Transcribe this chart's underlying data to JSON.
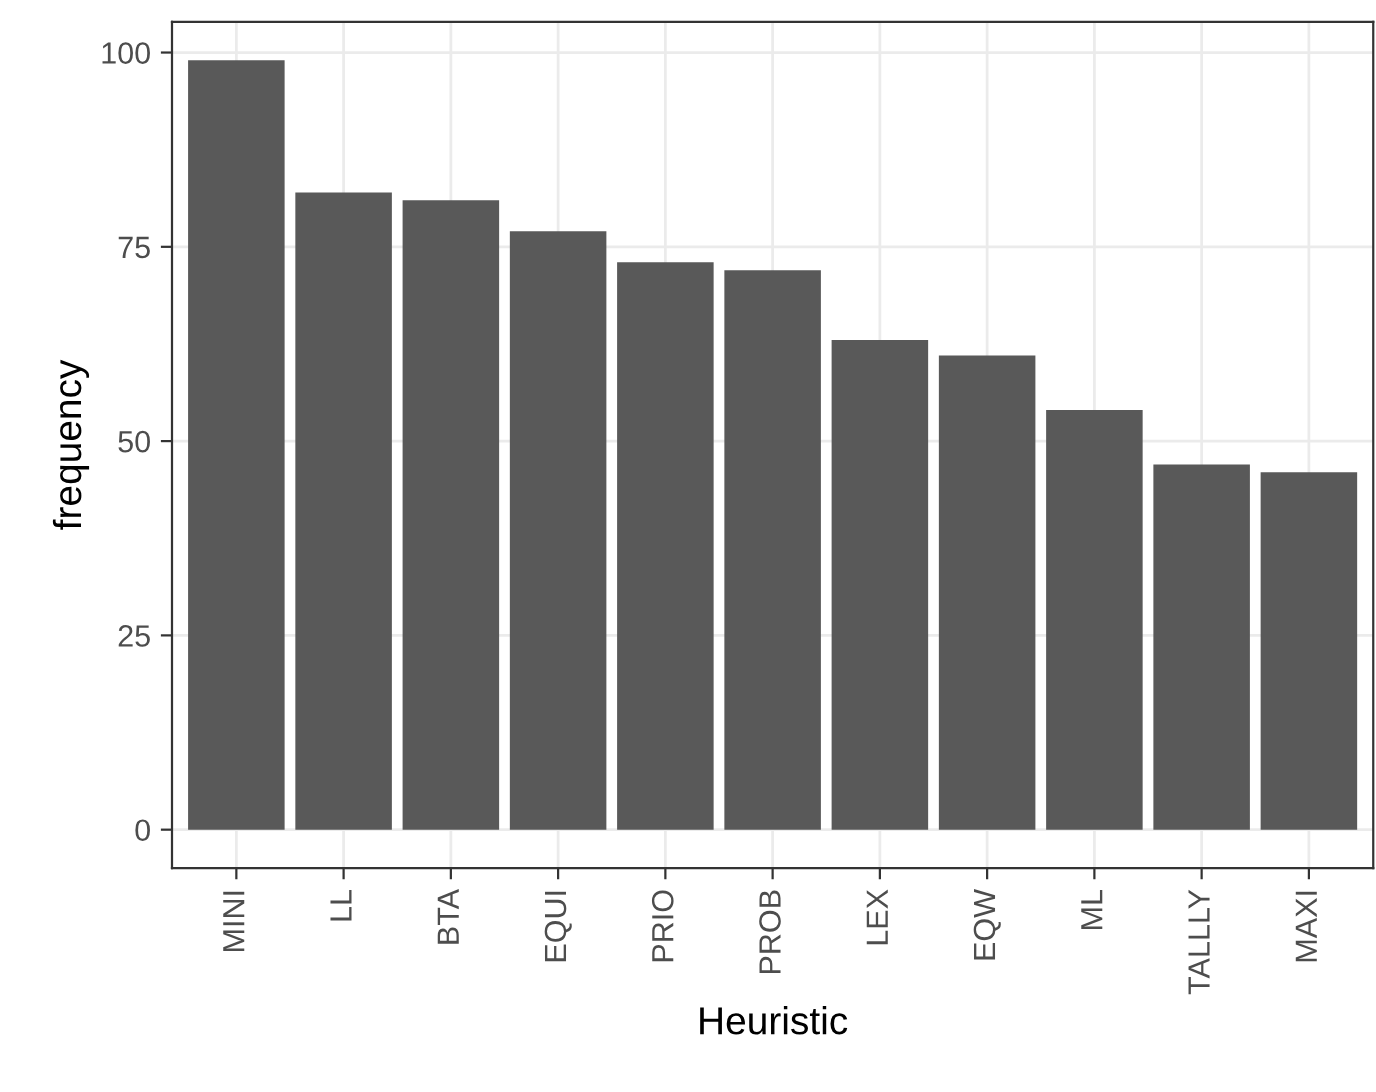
{
  "chart_data": {
    "type": "bar",
    "xlabel": "Heuristic",
    "ylabel": "frequency",
    "categories": [
      "MINI",
      "LL",
      "BTA",
      "EQUI",
      "PRIO",
      "PROB",
      "LEX",
      "EQW",
      "ML",
      "TALLLY",
      "MAXI"
    ],
    "values": [
      99,
      82,
      81,
      77,
      73,
      72,
      63,
      61,
      54,
      47,
      46
    ],
    "color": "#595959",
    "ylim": [
      -4.95,
      103.95
    ],
    "yticks": [
      0,
      25,
      50,
      75,
      100
    ],
    "grid": true,
    "legend": false
  }
}
